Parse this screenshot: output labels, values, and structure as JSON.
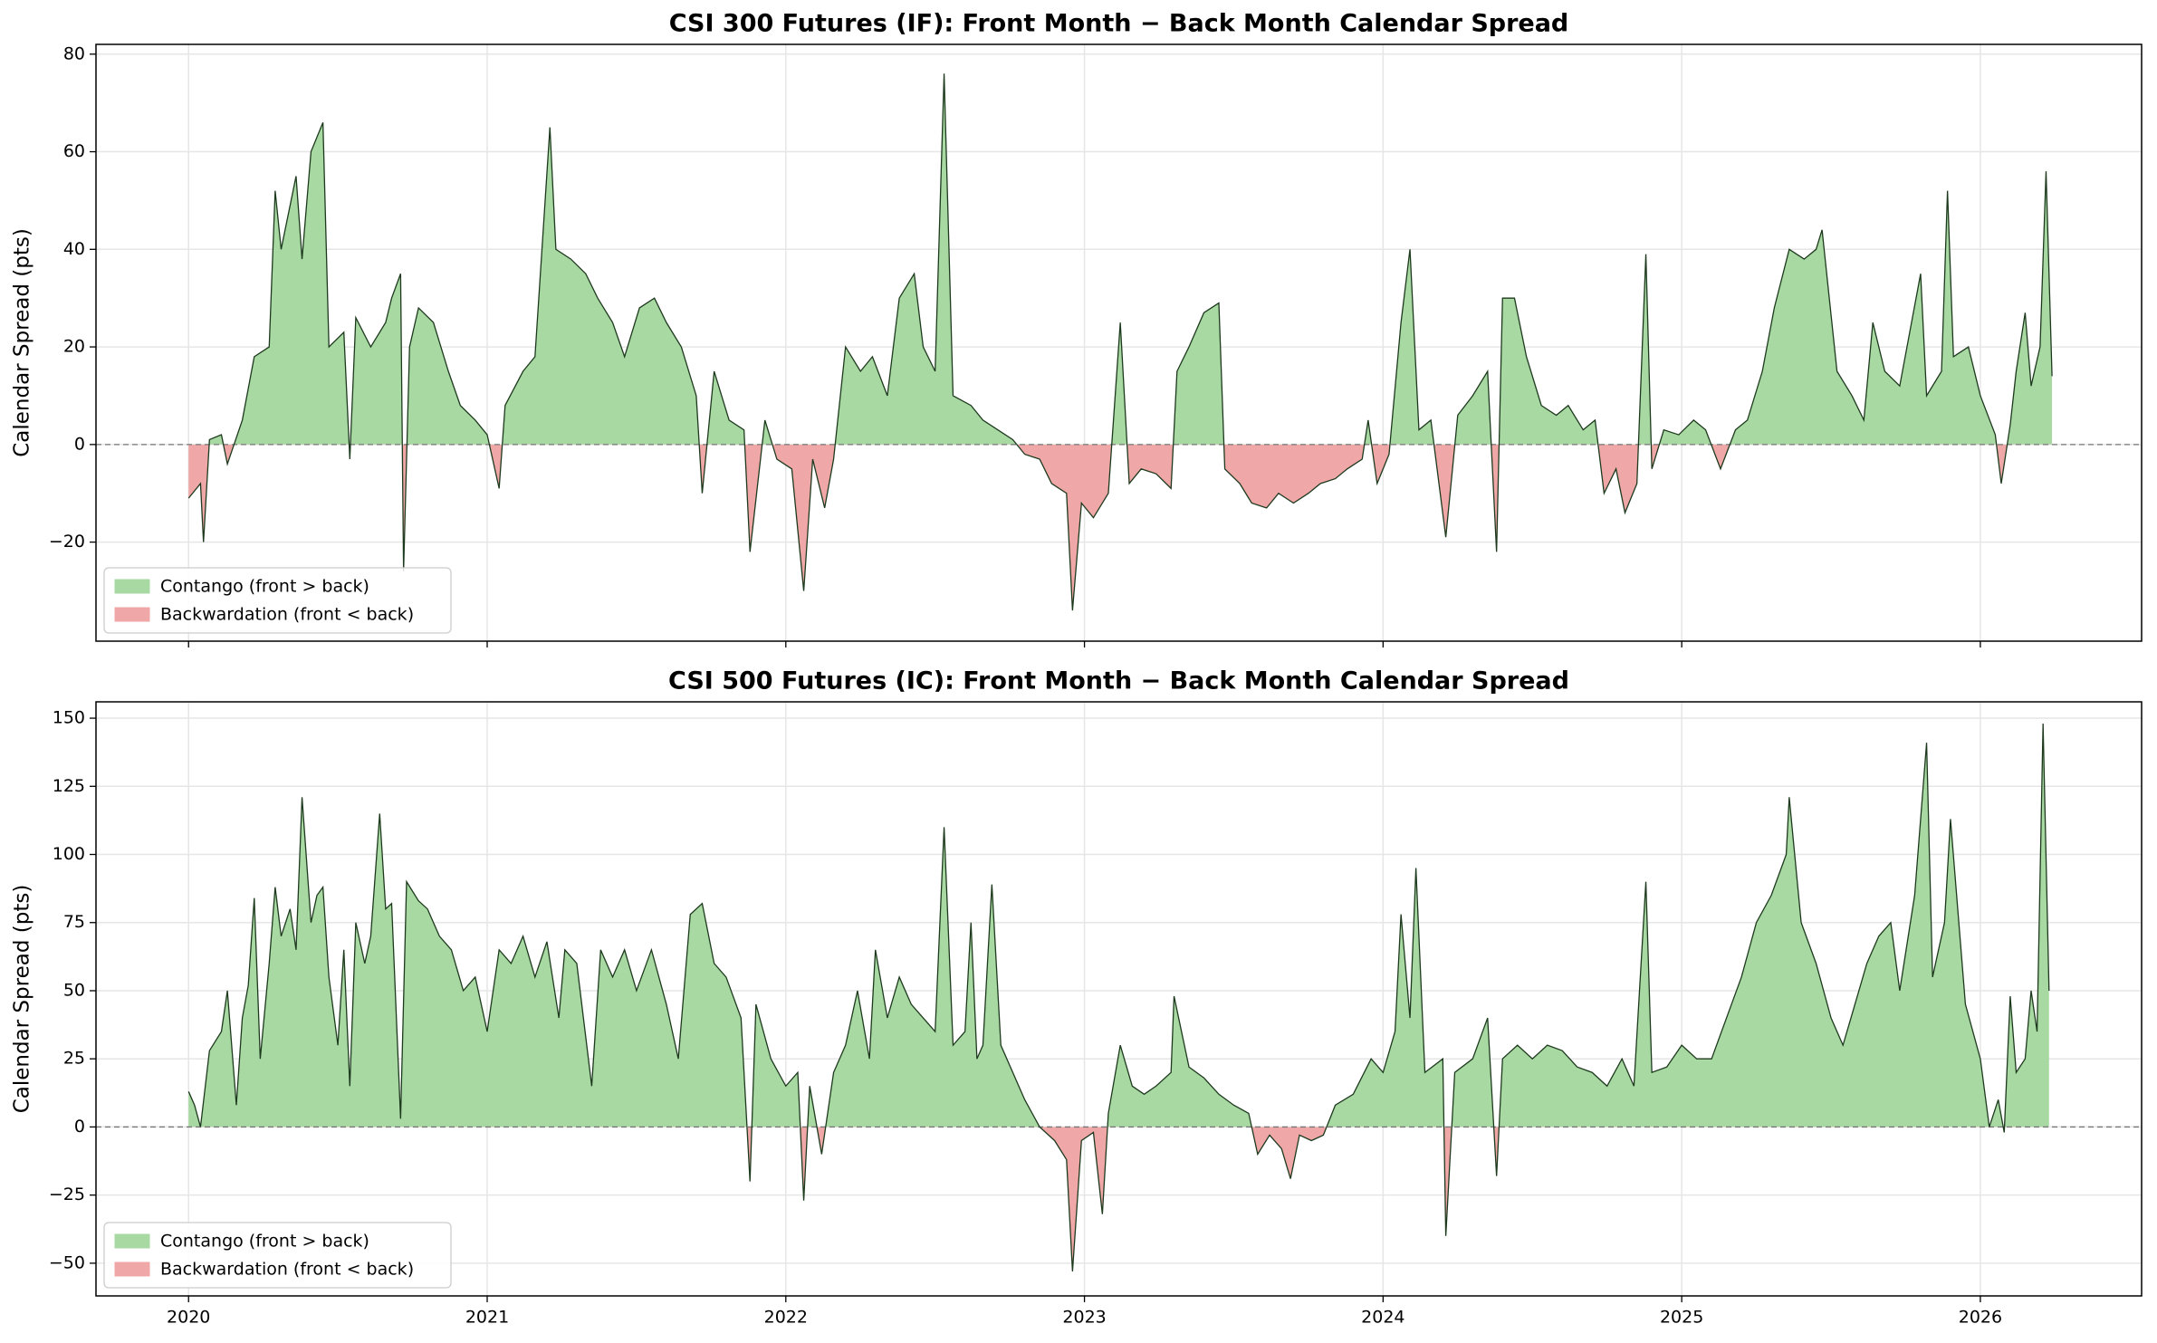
{
  "chart_data": [
    {
      "type": "area",
      "title": "CSI 300 Futures (IF): Front Month − Back Month Calendar Spread",
      "ylabel": "Calendar Spread (pts)",
      "x": [
        2020.0,
        2020.04,
        2020.05,
        2020.07,
        2020.11,
        2020.13,
        2020.18,
        2020.22,
        2020.27,
        2020.29,
        2020.31,
        2020.36,
        2020.38,
        2020.41,
        2020.45,
        2020.47,
        2020.52,
        2020.54,
        2020.56,
        2020.61,
        2020.66,
        2020.68,
        2020.71,
        2020.72,
        2020.74,
        2020.77,
        2020.82,
        2020.87,
        2020.91,
        2020.96,
        2021.0,
        2021.04,
        2021.06,
        2021.12,
        2021.16,
        2021.21,
        2021.23,
        2021.28,
        2021.33,
        2021.37,
        2021.42,
        2021.46,
        2021.51,
        2021.56,
        2021.6,
        2021.65,
        2021.7,
        2021.72,
        2021.76,
        2021.81,
        2021.86,
        2021.88,
        2021.93,
        2021.97,
        2022.02,
        2022.06,
        2022.09,
        2022.13,
        2022.16,
        2022.2,
        2022.25,
        2022.29,
        2022.34,
        2022.38,
        2022.43,
        2022.46,
        2022.5,
        2022.53,
        2022.56,
        2022.62,
        2022.66,
        2022.71,
        2022.76,
        2022.8,
        2022.85,
        2022.89,
        2022.94,
        2022.96,
        2022.99,
        2023.03,
        2023.08,
        2023.12,
        2023.15,
        2023.19,
        2023.24,
        2023.29,
        2023.31,
        2023.35,
        2023.4,
        2023.45,
        2023.47,
        2023.52,
        2023.54,
        2023.56,
        2023.61,
        2023.65,
        2023.7,
        2023.75,
        2023.79,
        2023.84,
        2023.88,
        2023.93,
        2023.95,
        2023.98,
        2024.02,
        2024.06,
        2024.09,
        2024.12,
        2024.16,
        2024.21,
        2024.25,
        2024.3,
        2024.35,
        2024.38,
        2024.4,
        2024.44,
        2024.48,
        2024.53,
        2024.58,
        2024.62,
        2024.67,
        2024.71,
        2024.74,
        2024.78,
        2024.81,
        2024.85,
        2024.88,
        2024.9,
        2024.94,
        2024.99,
        2025.04,
        2025.08,
        2025.13,
        2025.18,
        2025.22,
        2025.27,
        2025.31,
        2025.36,
        2025.41,
        2025.45,
        2025.47,
        2025.52,
        2025.57,
        2025.61,
        2025.64,
        2025.68,
        2025.73,
        2025.8,
        2025.82,
        2025.87,
        2025.89,
        2025.91,
        2025.96,
        2026.0,
        2026.05,
        2026.07,
        2026.1,
        2026.12,
        2026.15,
        2026.17,
        2026.2,
        2026.22,
        2026.24
      ],
      "values": [
        -11,
        -8,
        -20,
        1,
        2,
        -4,
        5,
        18,
        20,
        52,
        40,
        55,
        38,
        60,
        66,
        20,
        23,
        -3,
        26,
        20,
        25,
        30,
        35,
        -26,
        20,
        28,
        25,
        15,
        8,
        5,
        2,
        -9,
        8,
        15,
        18,
        65,
        40,
        38,
        35,
        30,
        25,
        18,
        28,
        30,
        25,
        20,
        10,
        -10,
        15,
        5,
        3,
        -22,
        5,
        -3,
        -5,
        -30,
        -3,
        -13,
        -3,
        20,
        15,
        18,
        10,
        30,
        35,
        20,
        15,
        76,
        10,
        8,
        5,
        3,
        1,
        -2,
        -3,
        -8,
        -10,
        -34,
        -12,
        -15,
        -10,
        25,
        -8,
        -5,
        -6,
        -9,
        15,
        20,
        27,
        29,
        -5,
        -8,
        -10,
        -12,
        -13,
        -10,
        -12,
        -10,
        -8,
        -7,
        -5,
        -3,
        5,
        -8,
        -2,
        25,
        40,
        3,
        5,
        -19,
        6,
        10,
        15,
        -22,
        30,
        30,
        18,
        8,
        6,
        8,
        3,
        5,
        -10,
        -5,
        -14,
        -8,
        39,
        -5,
        3,
        2,
        5,
        3,
        -5,
        3,
        5,
        15,
        28,
        40,
        38,
        40,
        44,
        15,
        10,
        5,
        25,
        15,
        12,
        35,
        10,
        15,
        52,
        18,
        20,
        10,
        2,
        -8,
        4,
        15,
        27,
        12,
        20,
        56,
        14
      ],
      "line_color": "#1e3a1e",
      "fills": [
        {
          "name": "Contango (front > back)",
          "color": "#a8d9a3",
          "where": "above"
        },
        {
          "name": "Backwardation (front < back)",
          "color": "#efa7a7",
          "where": "below"
        }
      ],
      "xlim": [
        2019.69,
        2026.54
      ],
      "xticks": [
        2020,
        2021,
        2022,
        2023,
        2024,
        2025,
        2026
      ],
      "xtick_labels": false,
      "ylim": [
        -40.3,
        82
      ],
      "yticks": [
        {
          "value": -20,
          "label": "−20"
        },
        0,
        20,
        40,
        60,
        80
      ],
      "grid": true,
      "legend_loc": "lower left"
    },
    {
      "type": "area",
      "title": "CSI 500 Futures (IC): Front Month − Back Month Calendar Spread",
      "ylabel": "Calendar Spread (pts)",
      "x": [
        2020.0,
        2020.02,
        2020.04,
        2020.07,
        2020.11,
        2020.13,
        2020.16,
        2020.18,
        2020.2,
        2020.22,
        2020.24,
        2020.27,
        2020.29,
        2020.31,
        2020.34,
        2020.36,
        2020.38,
        2020.41,
        2020.43,
        2020.45,
        2020.47,
        2020.5,
        2020.52,
        2020.54,
        2020.56,
        2020.59,
        2020.61,
        2020.64,
        2020.66,
        2020.68,
        2020.71,
        2020.73,
        2020.77,
        2020.8,
        2020.84,
        2020.88,
        2020.92,
        2020.96,
        2021.0,
        2021.04,
        2021.08,
        2021.12,
        2021.16,
        2021.2,
        2021.24,
        2021.26,
        2021.3,
        2021.35,
        2021.38,
        2021.42,
        2021.46,
        2021.5,
        2021.55,
        2021.6,
        2021.64,
        2021.68,
        2021.72,
        2021.76,
        2021.8,
        2021.85,
        2021.88,
        2021.9,
        2021.95,
        2022.0,
        2022.04,
        2022.06,
        2022.08,
        2022.12,
        2022.16,
        2022.2,
        2022.24,
        2022.28,
        2022.3,
        2022.34,
        2022.38,
        2022.42,
        2022.46,
        2022.5,
        2022.53,
        2022.56,
        2022.6,
        2022.62,
        2022.64,
        2022.66,
        2022.69,
        2022.72,
        2022.76,
        2022.8,
        2022.85,
        2022.9,
        2022.94,
        2022.96,
        2022.99,
        2023.03,
        2023.06,
        2023.08,
        2023.12,
        2023.16,
        2023.2,
        2023.24,
        2023.29,
        2023.3,
        2023.35,
        2023.4,
        2023.45,
        2023.5,
        2023.55,
        2023.58,
        2023.62,
        2023.66,
        2023.69,
        2023.72,
        2023.76,
        2023.8,
        2023.84,
        2023.9,
        2023.96,
        2024.0,
        2024.04,
        2024.06,
        2024.09,
        2024.11,
        2024.14,
        2024.2,
        2024.21,
        2024.24,
        2024.3,
        2024.35,
        2024.38,
        2024.4,
        2024.45,
        2024.5,
        2024.55,
        2024.6,
        2024.65,
        2024.7,
        2024.75,
        2024.8,
        2024.84,
        2024.88,
        2024.9,
        2024.95,
        2025.0,
        2025.05,
        2025.1,
        2025.15,
        2025.2,
        2025.25,
        2025.3,
        2025.35,
        2025.36,
        2025.4,
        2025.45,
        2025.5,
        2025.54,
        2025.58,
        2025.62,
        2025.66,
        2025.7,
        2025.73,
        2025.78,
        2025.82,
        2025.84,
        2025.88,
        2025.9,
        2025.95,
        2026.0,
        2026.03,
        2026.06,
        2026.08,
        2026.1,
        2026.12,
        2026.15,
        2026.17,
        2026.19,
        2026.21,
        2026.23
      ],
      "values": [
        13,
        8,
        0,
        28,
        35,
        50,
        8,
        40,
        52,
        84,
        25,
        60,
        88,
        70,
        80,
        65,
        121,
        75,
        85,
        88,
        55,
        30,
        65,
        15,
        75,
        60,
        70,
        115,
        80,
        82,
        3,
        90,
        83,
        80,
        70,
        65,
        50,
        55,
        35,
        65,
        60,
        70,
        55,
        68,
        40,
        65,
        60,
        15,
        65,
        55,
        65,
        50,
        65,
        45,
        25,
        78,
        82,
        60,
        55,
        40,
        -20,
        45,
        25,
        15,
        20,
        -27,
        15,
        -10,
        20,
        30,
        50,
        25,
        65,
        40,
        55,
        45,
        40,
        35,
        110,
        30,
        35,
        75,
        25,
        30,
        89,
        30,
        20,
        10,
        0,
        -5,
        -12,
        -53,
        -5,
        -2,
        -32,
        5,
        30,
        15,
        12,
        15,
        20,
        48,
        22,
        18,
        12,
        8,
        5,
        -10,
        -3,
        -8,
        -19,
        -3,
        -5,
        -3,
        8,
        12,
        25,
        20,
        35,
        78,
        40,
        95,
        20,
        25,
        -40,
        20,
        25,
        40,
        -18,
        25,
        30,
        25,
        30,
        28,
        22,
        20,
        15,
        25,
        15,
        90,
        20,
        22,
        30,
        25,
        25,
        40,
        55,
        75,
        85,
        100,
        121,
        75,
        60,
        40,
        30,
        45,
        60,
        70,
        75,
        50,
        85,
        141,
        55,
        75,
        113,
        45,
        25,
        0,
        10,
        -2,
        48,
        20,
        25,
        50,
        35,
        148,
        50
      ],
      "line_color": "#1e3a1e",
      "fills": [
        {
          "name": "Contango (front > back)",
          "color": "#a8d9a3",
          "where": "above"
        },
        {
          "name": "Backwardation (front < back)",
          "color": "#efa7a7",
          "where": "below"
        }
      ],
      "xlim": [
        2019.69,
        2026.54
      ],
      "xticks": [
        2020,
        2021,
        2022,
        2023,
        2024,
        2025,
        2026
      ],
      "xtick_labels": true,
      "ylim": [
        -62,
        156
      ],
      "yticks": [
        {
          "value": -50,
          "label": "−50"
        },
        {
          "value": -25,
          "label": "−25"
        },
        0,
        25,
        50,
        75,
        100,
        125,
        150
      ],
      "grid": true,
      "legend_loc": "lower left"
    }
  ]
}
